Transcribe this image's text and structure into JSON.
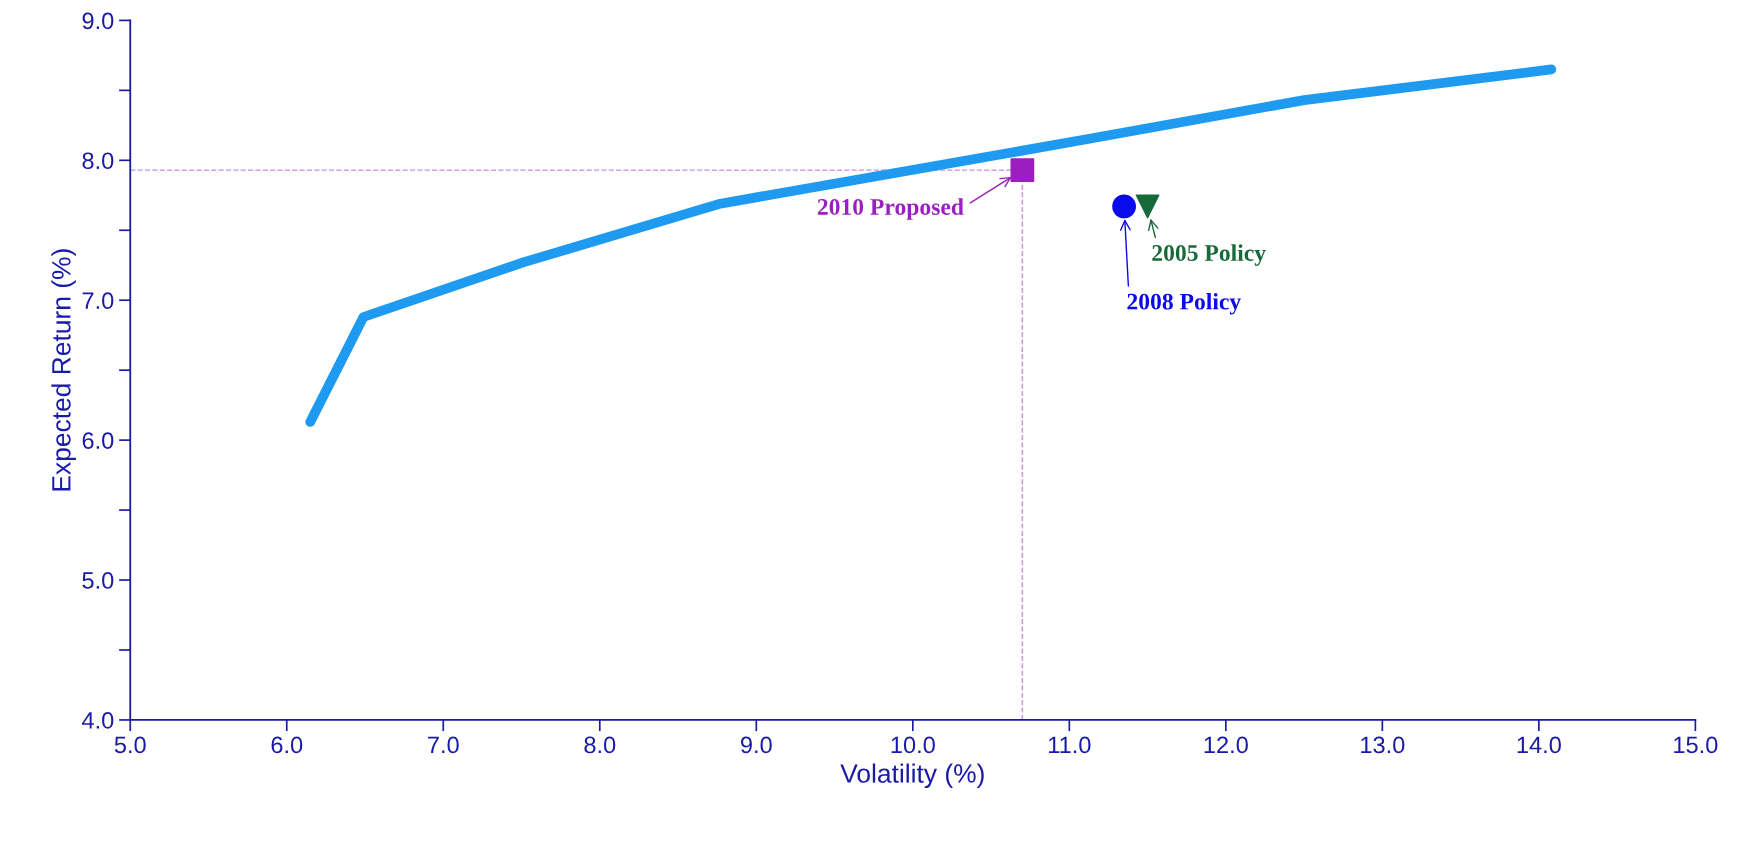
{
  "chart_data": {
    "type": "line",
    "xlabel": "Volatility (%)",
    "ylabel": "Expected Return (%)",
    "xlim": [
      5.0,
      15.0
    ],
    "ylim": [
      4.0,
      9.0
    ],
    "xticks": [
      {
        "value": 5,
        "label": "5.0"
      },
      {
        "value": 6,
        "label": "6.0"
      },
      {
        "value": 7,
        "label": "7.0"
      },
      {
        "value": 8,
        "label": "8.0"
      },
      {
        "value": 9,
        "label": "9.0"
      },
      {
        "value": 10,
        "label": "10.0"
      },
      {
        "value": 11,
        "label": "11.0"
      },
      {
        "value": 12,
        "label": "12.0"
      },
      {
        "value": 13,
        "label": "13.0"
      },
      {
        "value": 14,
        "label": "14.0"
      },
      {
        "value": 15,
        "label": "15.0"
      }
    ],
    "yticks": [
      {
        "value": 4,
        "label": "4.0"
      },
      {
        "value": 4.5,
        "label": null
      },
      {
        "value": 5,
        "label": "5.0"
      },
      {
        "value": 5.5,
        "label": null
      },
      {
        "value": 6,
        "label": "6.0"
      },
      {
        "value": 6.5,
        "label": null
      },
      {
        "value": 7,
        "label": "7.0"
      },
      {
        "value": 7.5,
        "label": null
      },
      {
        "value": 8,
        "label": "8.0"
      },
      {
        "value": 8.5,
        "label": null
      },
      {
        "value": 9,
        "label": "9.0"
      }
    ],
    "grid": false,
    "series": [
      {
        "color": "#1e9bf0",
        "x": [
          6.15,
          6.49,
          7.51,
          8.77,
          11.11,
          12.5,
          14.08
        ],
        "values": [
          6.13,
          6.88,
          7.27,
          7.69,
          8.15,
          8.43,
          8.65
        ]
      },
      {
        "type": "scatter",
        "name": "2010 Proposed",
        "color": "#9b1fc0",
        "marker": "square",
        "x": [
          10.7
        ],
        "values": [
          7.93
        ]
      },
      {
        "type": "scatter",
        "name": "2005 Policy",
        "color": "#17693a",
        "marker": "triangle",
        "x": [
          11.5
        ],
        "values": [
          7.67
        ]
      },
      {
        "type": "scatter",
        "name": "2008 Policy",
        "color": "#0a0aee",
        "marker": "circle",
        "x": [
          11.35
        ],
        "values": [
          7.67
        ]
      }
    ],
    "ref_lines": [
      {
        "axis": "y",
        "value": 7.93,
        "color": "#c890d8",
        "line_style": "dashed"
      },
      {
        "axis": "x",
        "value": 10.7,
        "color": "#c890d8",
        "line_style": "dashed"
      }
    ]
  }
}
